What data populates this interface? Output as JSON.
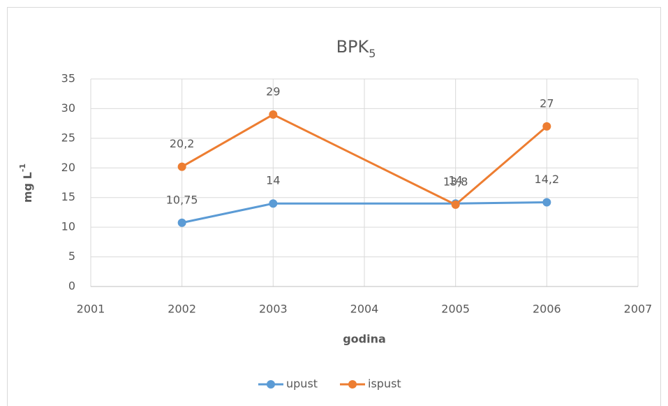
{
  "chart_data": {
    "type": "line",
    "title": "BPK",
    "title_subscript": "5",
    "xlabel": "godina",
    "ylabel": "mg L",
    "ylabel_superscript": "-1",
    "x": [
      2002,
      2003,
      2005,
      2006
    ],
    "series": [
      {
        "name": "upust",
        "color": "#5b9bd5",
        "values": [
          10.75,
          14,
          14,
          14.2
        ],
        "value_labels": [
          "10,75",
          "14",
          "14",
          "14,2"
        ]
      },
      {
        "name": "ispust",
        "color": "#ed7d31",
        "values": [
          20.2,
          29,
          13.8,
          27
        ],
        "value_labels": [
          "20,2",
          "29",
          "13,8",
          "27"
        ]
      }
    ],
    "xlim": [
      2001,
      2007
    ],
    "xticks": [
      2001,
      2002,
      2003,
      2004,
      2005,
      2006,
      2007
    ],
    "ylim": [
      0,
      35
    ],
    "yticks": [
      0,
      5,
      10,
      15,
      20,
      25,
      30,
      35
    ],
    "grid": true,
    "legend": "bottom"
  }
}
